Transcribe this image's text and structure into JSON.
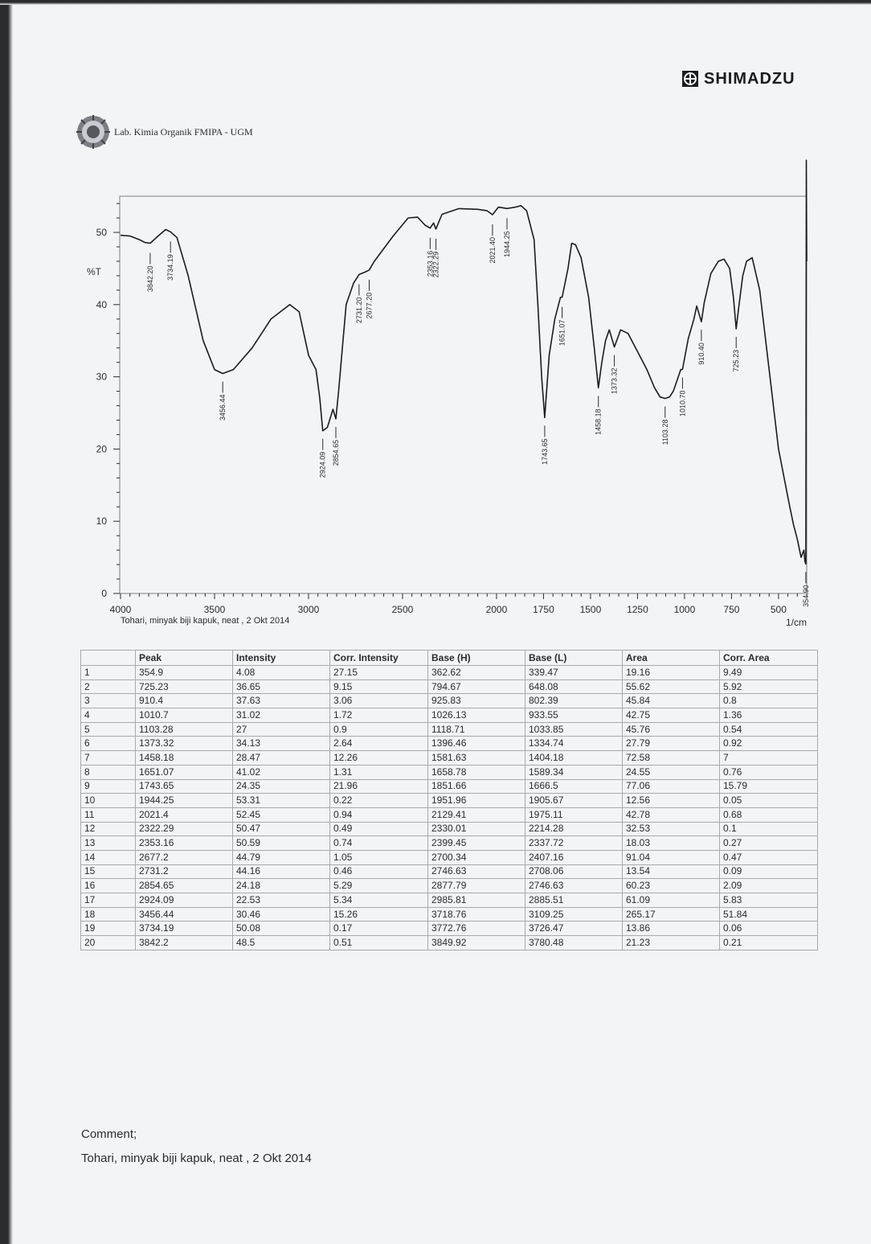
{
  "brand": {
    "name": "SHIMADZU"
  },
  "header": {
    "lab": "Lab. Kimia Organik FMIPA - UGM"
  },
  "chart_data": {
    "type": "line",
    "title": "",
    "xlabel": "1/cm",
    "ylabel": "%T",
    "xlim": [
      4000,
      350
    ],
    "ylim": [
      0,
      55
    ],
    "x_ticks": [
      4000,
      3500,
      3000,
      2500,
      2000,
      1750,
      1500,
      1250,
      1000,
      750,
      500
    ],
    "y_ticks": [
      0,
      10,
      20,
      30,
      40,
      50
    ],
    "grid": false,
    "caption": "Tohari, minyak biji kapuk, neat , 2 Okt 2014",
    "series": [
      {
        "x": [
          4000,
          3950,
          3900,
          3870,
          3842.2,
          3800,
          3760,
          3734.19,
          3700,
          3640,
          3560,
          3500,
          3456.44,
          3400,
          3300,
          3200,
          3100,
          3050,
          3000,
          2960,
          2940,
          2924.09,
          2900,
          2870,
          2854.65,
          2840,
          2800,
          2760,
          2731.2,
          2700,
          2677.2,
          2650,
          2550,
          2470,
          2420,
          2380,
          2353.16,
          2335,
          2322.29,
          2290,
          2200,
          2100,
          2050,
          2021.4,
          1990,
          1944.25,
          1900,
          1870,
          1840,
          1800,
          1780,
          1760,
          1743.65,
          1720,
          1690,
          1660,
          1651.07,
          1620,
          1600,
          1580,
          1550,
          1510,
          1480,
          1458.18,
          1440,
          1420,
          1400,
          1373.32,
          1340,
          1300,
          1270,
          1240,
          1200,
          1160,
          1130,
          1103.28,
          1080,
          1060,
          1040,
          1020,
          1010.7,
          980,
          950,
          935,
          920,
          910.4,
          895,
          860,
          820,
          790,
          760,
          740,
          725.23,
          710,
          690,
          670,
          640,
          600,
          550,
          500,
          470,
          440,
          420,
          400,
          380,
          365,
          360,
          354.9,
          352,
          350
        ],
        "y": [
          49.6,
          49.5,
          49,
          48.6,
          48.5,
          49.5,
          50.4,
          50.08,
          49.3,
          44,
          35,
          31,
          30.46,
          31,
          34,
          38,
          40,
          39,
          33,
          31,
          27,
          22.53,
          23,
          25.5,
          24.18,
          28,
          40,
          43,
          44.16,
          44.5,
          44.79,
          46,
          49.5,
          52,
          52.1,
          51,
          50.59,
          51.3,
          50.47,
          52.5,
          53.3,
          53.2,
          53,
          52.45,
          53.5,
          53.31,
          53.5,
          53.7,
          53,
          49,
          40,
          30,
          24.35,
          33,
          38,
          41,
          41.02,
          45,
          48.5,
          48.3,
          46.5,
          41,
          34,
          28.47,
          32,
          35,
          36.5,
          34.13,
          36.5,
          36,
          34.5,
          33,
          31,
          28.5,
          27.2,
          27,
          27.2,
          28,
          29.5,
          31,
          31.02,
          35.3,
          38,
          39.8,
          38.5,
          37.63,
          40.3,
          44.3,
          46,
          46.3,
          45,
          41,
          36.65,
          40,
          44,
          46,
          46.5,
          42,
          31,
          20,
          16,
          12,
          9.5,
          7.5,
          5,
          6,
          4.5,
          4.08,
          60,
          46
        ]
      }
    ],
    "peak_labels": [
      "3842.20",
      "3734.19",
      "3456.44",
      "2924.09",
      "2854.65",
      "2731.20",
      "2677.20",
      "2353.16",
      "2322.29",
      "2021.40",
      "1944.25",
      "1743.65",
      "1651.07",
      "1458.18",
      "1373.32",
      "1103.28",
      "1010.70",
      "910.40",
      "725.23",
      "354.90"
    ]
  },
  "table": {
    "headers": [
      "",
      "Peak",
      "Intensity",
      "Corr. Intensity",
      "Base (H)",
      "Base (L)",
      "Area",
      "Corr. Area"
    ],
    "rows": [
      [
        "1",
        "354.9",
        "4.08",
        "27.15",
        "362.62",
        "339.47",
        "19.16",
        "9.49"
      ],
      [
        "2",
        "725.23",
        "36.65",
        "9.15",
        "794.67",
        "648.08",
        "55.62",
        "5.92"
      ],
      [
        "3",
        "910.4",
        "37.63",
        "3.06",
        "925.83",
        "802.39",
        "45.84",
        "0.8"
      ],
      [
        "4",
        "1010.7",
        "31.02",
        "1.72",
        "1026.13",
        "933.55",
        "42.75",
        "1.36"
      ],
      [
        "5",
        "1103.28",
        "27",
        "0.9",
        "1118.71",
        "1033.85",
        "45.76",
        "0.54"
      ],
      [
        "6",
        "1373.32",
        "34.13",
        "2.64",
        "1396.46",
        "1334.74",
        "27.79",
        "0.92"
      ],
      [
        "7",
        "1458.18",
        "28.47",
        "12.26",
        "1581.63",
        "1404.18",
        "72.58",
        "7"
      ],
      [
        "8",
        "1651.07",
        "41.02",
        "1.31",
        "1658.78",
        "1589.34",
        "24.55",
        "0.76"
      ],
      [
        "9",
        "1743.65",
        "24.35",
        "21.96",
        "1851.66",
        "1666.5",
        "77.06",
        "15.79"
      ],
      [
        "10",
        "1944.25",
        "53.31",
        "0.22",
        "1951.96",
        "1905.67",
        "12.56",
        "0.05"
      ],
      [
        "11",
        "2021.4",
        "52.45",
        "0.94",
        "2129.41",
        "1975.11",
        "42.78",
        "0.68"
      ],
      [
        "12",
        "2322.29",
        "50.47",
        "0.49",
        "2330.01",
        "2214.28",
        "32.53",
        "0.1"
      ],
      [
        "13",
        "2353.16",
        "50.59",
        "0.74",
        "2399.45",
        "2337.72",
        "18.03",
        "0.27"
      ],
      [
        "14",
        "2677.2",
        "44.79",
        "1.05",
        "2700.34",
        "2407.16",
        "91.04",
        "0.47"
      ],
      [
        "15",
        "2731.2",
        "44.16",
        "0.46",
        "2746.63",
        "2708.06",
        "13.54",
        "0.09"
      ],
      [
        "16",
        "2854.65",
        "24.18",
        "5.29",
        "2877.79",
        "2746.63",
        "60.23",
        "2.09"
      ],
      [
        "17",
        "2924.09",
        "22.53",
        "5.34",
        "2985.81",
        "2885.51",
        "61.09",
        "5.83"
      ],
      [
        "18",
        "3456.44",
        "30.46",
        "15.26",
        "3718.76",
        "3109.25",
        "265.17",
        "51.84"
      ],
      [
        "19",
        "3734.19",
        "50.08",
        "0.17",
        "3772.76",
        "3726.47",
        "13.86",
        "0.06"
      ],
      [
        "20",
        "3842.2",
        "48.5",
        "0.51",
        "3849.92",
        "3780.48",
        "21.23",
        "0.21"
      ]
    ]
  },
  "comment": {
    "label": "Comment;",
    "text": "Tohari, minyak biji kapuk, neat , 2 Okt 2014"
  },
  "colors": {
    "paper": "#f2f4f6",
    "ink": "#1f2126",
    "border": "#a9a9a9"
  }
}
